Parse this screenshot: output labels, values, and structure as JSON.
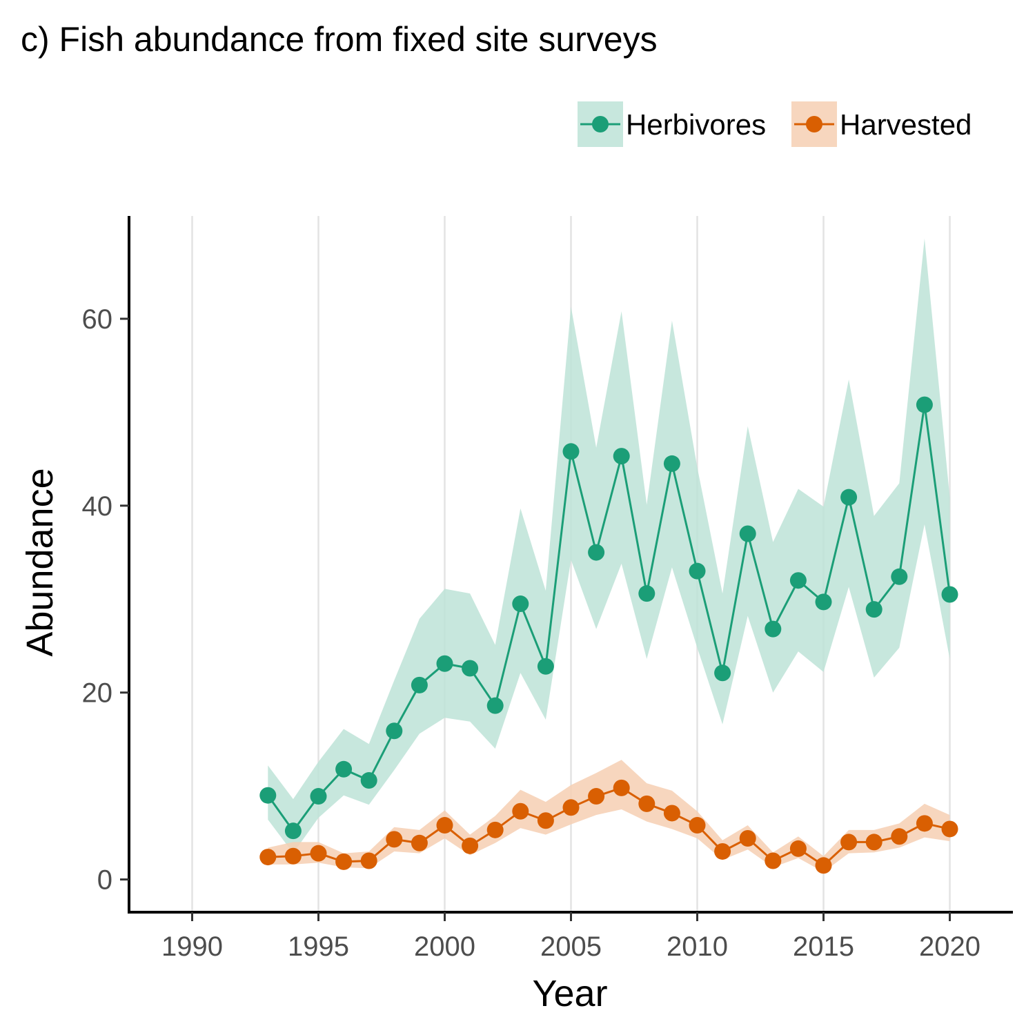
{
  "chart_data": {
    "type": "line",
    "title": "c) Fish abundance from fixed site surveys",
    "xlabel": "Year",
    "ylabel": "Abundance",
    "xlim": [
      1987.5,
      2022.5
    ],
    "ylim": [
      -3.5,
      71
    ],
    "x_ticks": [
      1990,
      1995,
      2000,
      2005,
      2010,
      2015,
      2020
    ],
    "y_ticks": [
      0,
      20,
      40,
      60
    ],
    "grid": "vertical major",
    "legend_position": "top-right",
    "x": [
      1993,
      1994,
      1995,
      1996,
      1997,
      1998,
      1999,
      2000,
      2001,
      2002,
      2003,
      2004,
      2005,
      2006,
      2007,
      2008,
      2009,
      2010,
      2011,
      2012,
      2013,
      2014,
      2015,
      2016,
      2017,
      2018,
      2019,
      2020
    ],
    "series": [
      {
        "name": "Herbivores",
        "color": "#1b9e77",
        "fill": "#bde3d7",
        "values": [
          9.0,
          5.2,
          8.9,
          11.8,
          10.6,
          15.9,
          20.8,
          23.1,
          22.6,
          18.6,
          29.5,
          22.8,
          45.8,
          35.0,
          45.3,
          30.6,
          44.5,
          33.0,
          22.1,
          37.0,
          26.8,
          32.0,
          29.7,
          40.9,
          28.9,
          32.4,
          50.8,
          30.5
        ],
        "lower": [
          6.4,
          2.8,
          6.6,
          9.0,
          8.0,
          11.7,
          15.6,
          17.3,
          16.9,
          14.0,
          22.1,
          17.1,
          34.2,
          26.8,
          33.8,
          23.6,
          33.4,
          24.8,
          16.6,
          28.2,
          20.0,
          24.4,
          22.2,
          31.3,
          21.6,
          24.8,
          38.0,
          23.6
        ],
        "upper": [
          12.2,
          8.6,
          12.6,
          16.1,
          14.5,
          21.3,
          27.9,
          31.1,
          30.6,
          25.1,
          39.7,
          30.9,
          61.3,
          46.2,
          60.8,
          40.1,
          59.8,
          44.1,
          30.6,
          48.5,
          36.1,
          41.8,
          39.9,
          53.5,
          38.9,
          42.4,
          68.6,
          40.9
        ]
      },
      {
        "name": "Harvested",
        "color": "#d95f02",
        "fill": "#f6cfb3",
        "values": [
          2.4,
          2.5,
          2.8,
          1.9,
          2.0,
          4.3,
          3.9,
          5.8,
          3.6,
          5.3,
          7.3,
          6.3,
          7.7,
          8.9,
          9.8,
          8.1,
          7.1,
          5.8,
          3.0,
          4.4,
          2.0,
          3.3,
          1.5,
          4.0,
          4.0,
          4.6,
          6.0,
          5.4
        ],
        "lower": [
          1.6,
          1.6,
          1.8,
          1.3,
          1.2,
          3.0,
          2.8,
          4.4,
          2.6,
          3.9,
          5.5,
          4.8,
          5.9,
          6.9,
          7.5,
          6.2,
          5.4,
          4.4,
          2.1,
          3.2,
          1.3,
          2.3,
          0.8,
          2.8,
          2.9,
          3.4,
          4.5,
          4.1
        ],
        "upper": [
          3.4,
          4.0,
          4.0,
          2.8,
          3.0,
          5.6,
          5.3,
          7.4,
          4.8,
          6.8,
          9.6,
          8.3,
          10.1,
          11.4,
          12.8,
          10.3,
          9.5,
          7.3,
          4.2,
          5.8,
          2.9,
          4.6,
          2.5,
          5.3,
          5.3,
          6.0,
          8.1,
          6.9
        ]
      }
    ]
  }
}
